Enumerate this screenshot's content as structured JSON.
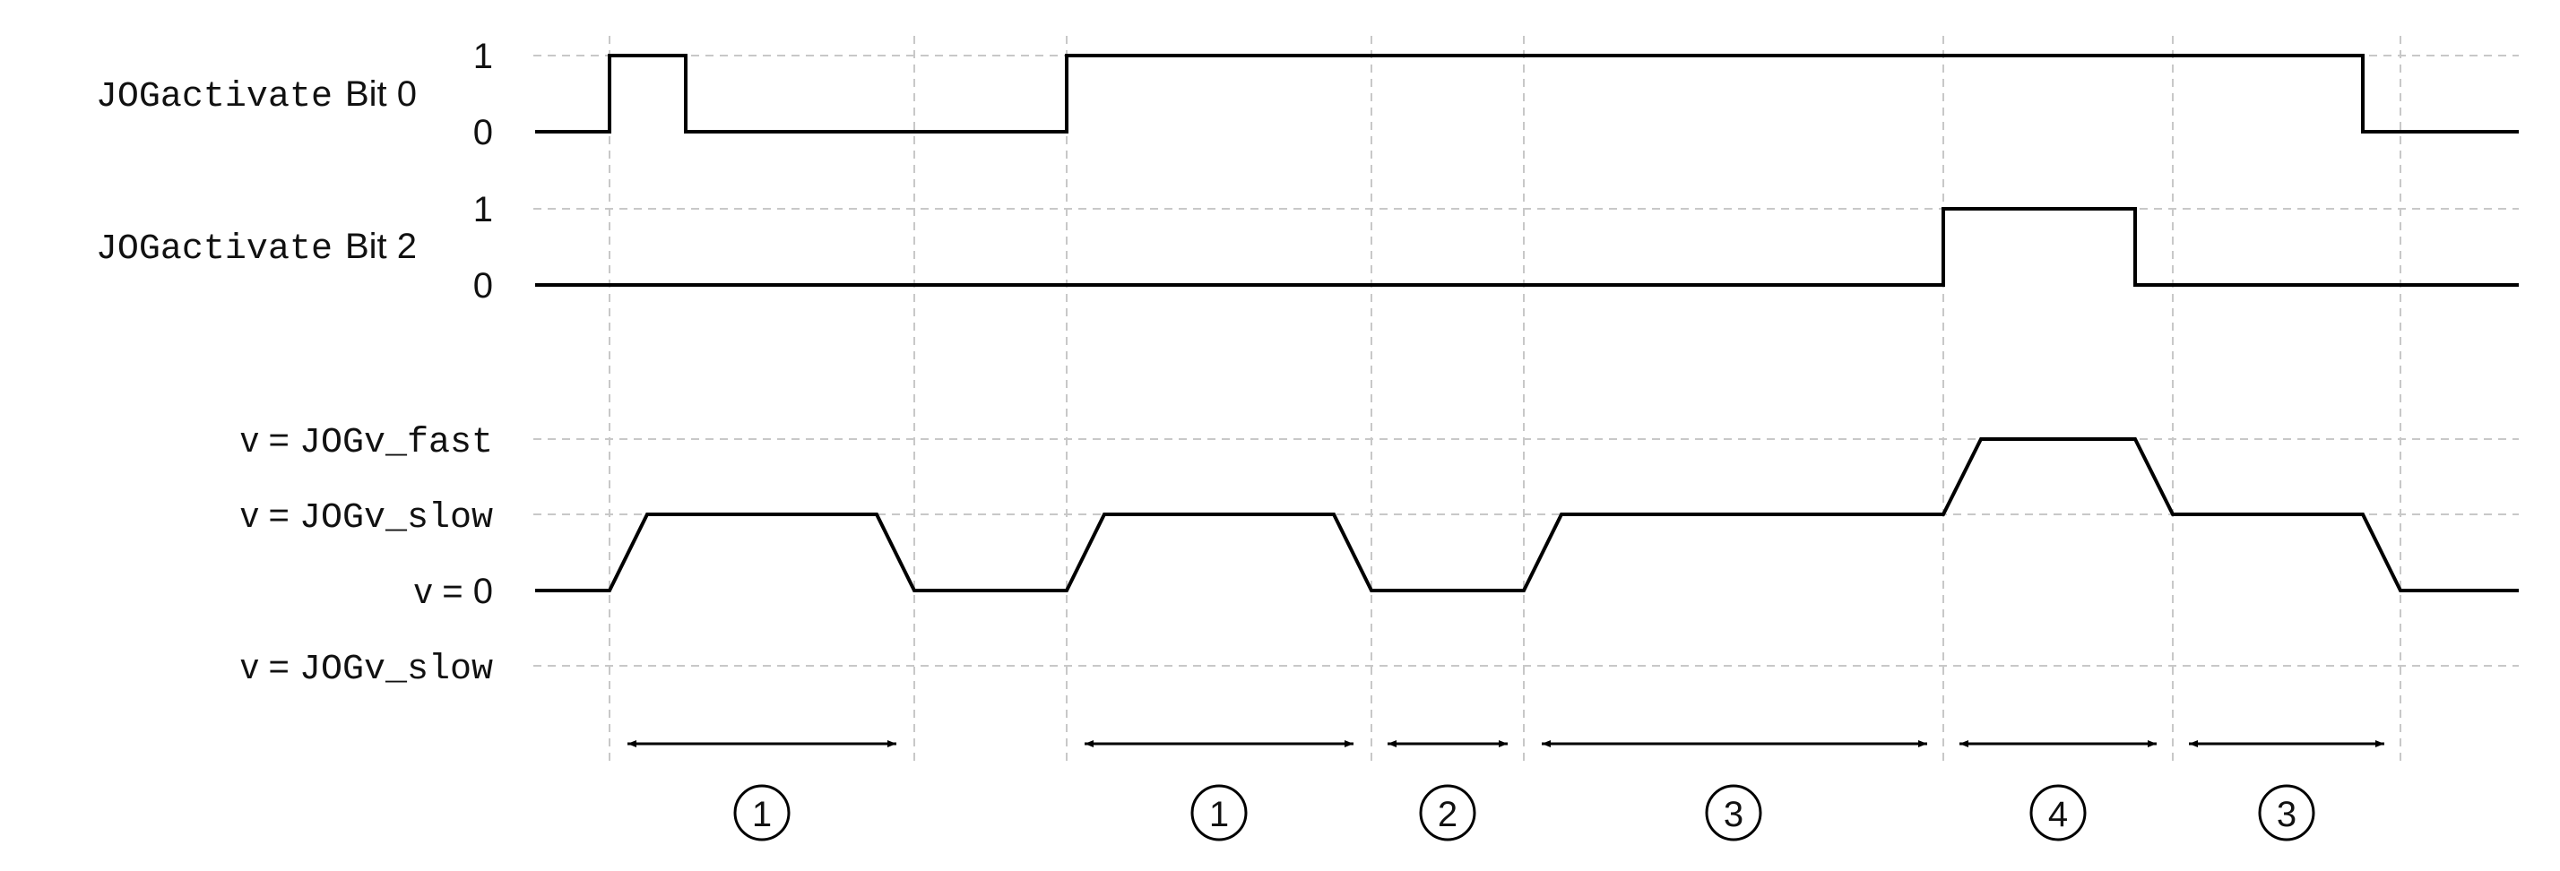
{
  "signals": [
    {
      "label_mono": "JOGactivate",
      "label_sans": "Bit 0",
      "level_high": "1",
      "level_low": "0"
    },
    {
      "label_mono": "JOGactivate",
      "label_sans": "Bit 2",
      "level_high": "1",
      "level_low": "0"
    }
  ],
  "velocity_levels": [
    {
      "prefix": "v = ",
      "mono": "JOGv_fast"
    },
    {
      "prefix": "v = ",
      "mono": "JOGv_slow"
    },
    {
      "prefix": "v = ",
      "mono": "0"
    },
    {
      "prefix": "v = ",
      "mono": "JOGv_slow"
    }
  ],
  "phase_markers": [
    "1",
    "1",
    "2",
    "3",
    "4",
    "3"
  ],
  "colors": {
    "line": "#000000",
    "grid": "#c8c8c8",
    "background": "#ffffff"
  }
}
